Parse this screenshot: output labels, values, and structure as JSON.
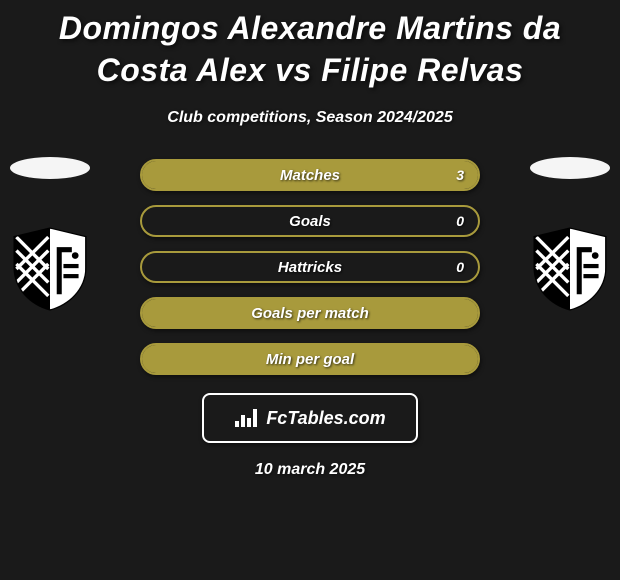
{
  "title": "Domingos Alexandre Martins da Costa Alex vs Filipe Relvas",
  "subtitle": "Club competitions, Season 2024/2025",
  "date": "10 march 2025",
  "brand": {
    "text": "FcTables.com"
  },
  "colors": {
    "stat_border": "#a89a3c",
    "stat_fill": "#a89a3c",
    "background": "#1a1a1a",
    "text": "#ffffff"
  },
  "stats": [
    {
      "label": "Matches",
      "value": "3",
      "fill_pct": 100
    },
    {
      "label": "Goals",
      "value": "0",
      "fill_pct": 0
    },
    {
      "label": "Hattricks",
      "value": "0",
      "fill_pct": 0
    },
    {
      "label": "Goals per match",
      "value": "",
      "fill_pct": 100
    },
    {
      "label": "Min per goal",
      "value": "",
      "fill_pct": 100
    }
  ],
  "players": {
    "left": {
      "oval": true,
      "crest": "vitoria-guimaraes"
    },
    "right": {
      "oval": true,
      "crest": "vitoria-guimaraes"
    }
  }
}
